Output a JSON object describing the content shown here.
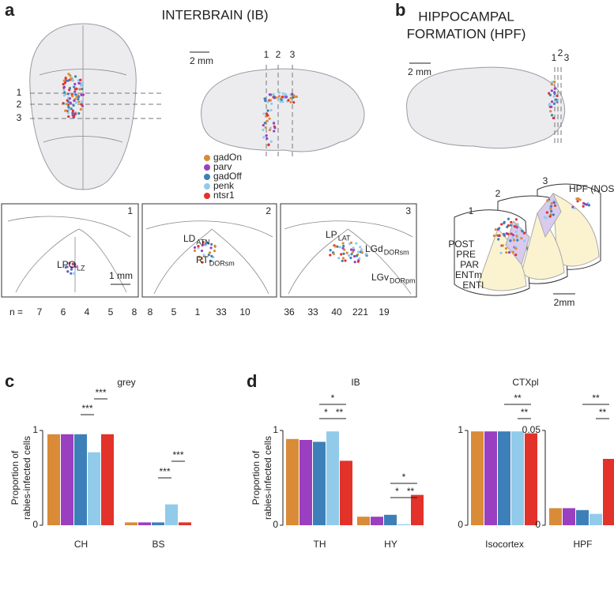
{
  "panel_labels": [
    "a",
    "b",
    "c",
    "d"
  ],
  "panel_a": {
    "title": "INTERBRAIN (IB)",
    "scale_top": "2 mm",
    "section_numbers": [
      "1",
      "2",
      "3"
    ],
    "scale_section": "1 mm",
    "region_labels": [
      {
        "name": "LPO",
        "sub": "LZ"
      },
      {
        "name": "LD",
        "sub": "ATN"
      },
      {
        "name": "RT",
        "sub": "DORsm"
      },
      {
        "name": "LP",
        "sub": "LAT"
      },
      {
        "name": "LGd",
        "sub": "DORsm"
      },
      {
        "name": "LGv",
        "sub": "DORpm"
      }
    ],
    "counts_label": "n =",
    "counts": [
      [
        7,
        6,
        4,
        5,
        8
      ],
      [
        8,
        5,
        1,
        33,
        10
      ],
      [
        36,
        33,
        40,
        221,
        19
      ]
    ]
  },
  "legend": [
    {
      "name": "gadOn",
      "color": "#d98b37"
    },
    {
      "name": "parv",
      "color": "#9a3fc0"
    },
    {
      "name": "gadOff",
      "color": "#3d80b9"
    },
    {
      "name": "penk",
      "color": "#92cbea"
    },
    {
      "name": "ntsr1",
      "color": "#e2322a"
    }
  ],
  "panel_b": {
    "title_lines": [
      "HIPPOCAMPAL",
      "FORMATION (HPF)"
    ],
    "scale_top": "2 mm",
    "section_numbers": [
      "1",
      "2",
      "3"
    ],
    "scale_section": "2mm",
    "region_labels": [
      "HPF (NOS)",
      "POST",
      "PRE",
      "PAR",
      "ENTm",
      "ENTl"
    ]
  },
  "chart_data": [
    {
      "type": "bar",
      "title": "grey",
      "ylabel": [
        "Proportion of",
        "rabies-infected cells"
      ],
      "categories": [
        "CH",
        "BS"
      ],
      "series": [
        {
          "color": "#d98b37",
          "values": [
            0.96,
            0.03
          ]
        },
        {
          "color": "#9a3fc0",
          "values": [
            0.96,
            0.03
          ]
        },
        {
          "color": "#3d80b9",
          "values": [
            0.96,
            0.03
          ]
        },
        {
          "color": "#92cbea",
          "values": [
            0.77,
            0.22
          ]
        },
        {
          "color": "#e2322a",
          "values": [
            0.96,
            0.03
          ]
        }
      ],
      "ylim": [
        0,
        1
      ],
      "yticks": [
        0,
        1
      ],
      "annotations": [
        "***",
        "***",
        "***",
        "***"
      ]
    },
    {
      "type": "bar",
      "title": "IB",
      "ylabel": [
        "Proportion of",
        "rabies-infected cells"
      ],
      "categories": [
        "TH",
        "HY"
      ],
      "series": [
        {
          "color": "#d98b37",
          "values": [
            0.91,
            0.09
          ]
        },
        {
          "color": "#9a3fc0",
          "values": [
            0.9,
            0.09
          ]
        },
        {
          "color": "#3d80b9",
          "values": [
            0.88,
            0.11
          ]
        },
        {
          "color": "#92cbea",
          "values": [
            0.99,
            0.01
          ]
        },
        {
          "color": "#e2322a",
          "values": [
            0.68,
            0.32
          ]
        }
      ],
      "ylim": [
        0,
        1
      ],
      "yticks": [
        0,
        1
      ],
      "annotations": [
        "*",
        "*",
        "**",
        "*",
        "*",
        "**"
      ]
    },
    {
      "type": "bar",
      "title": "CTXpl",
      "categories": [
        "Isocortex"
      ],
      "series": [
        {
          "color": "#d98b37",
          "values": [
            0.99
          ]
        },
        {
          "color": "#9a3fc0",
          "values": [
            0.99
          ]
        },
        {
          "color": "#3d80b9",
          "values": [
            0.99
          ]
        },
        {
          "color": "#92cbea",
          "values": [
            0.99
          ]
        },
        {
          "color": "#e2322a",
          "values": [
            0.97
          ]
        }
      ],
      "ylim": [
        0,
        1
      ],
      "yticks": [
        0,
        1
      ],
      "annotations": [
        "**",
        "**"
      ]
    },
    {
      "type": "bar",
      "categories": [
        "HPF"
      ],
      "series": [
        {
          "color": "#d98b37",
          "values": [
            0.009
          ]
        },
        {
          "color": "#9a3fc0",
          "values": [
            0.009
          ]
        },
        {
          "color": "#3d80b9",
          "values": [
            0.008
          ]
        },
        {
          "color": "#92cbea",
          "values": [
            0.006
          ]
        },
        {
          "color": "#e2322a",
          "values": [
            0.035
          ]
        }
      ],
      "ylim": [
        0,
        0.05
      ],
      "yticks": [
        0,
        0.05
      ],
      "annotations": [
        "**",
        "**"
      ]
    }
  ]
}
